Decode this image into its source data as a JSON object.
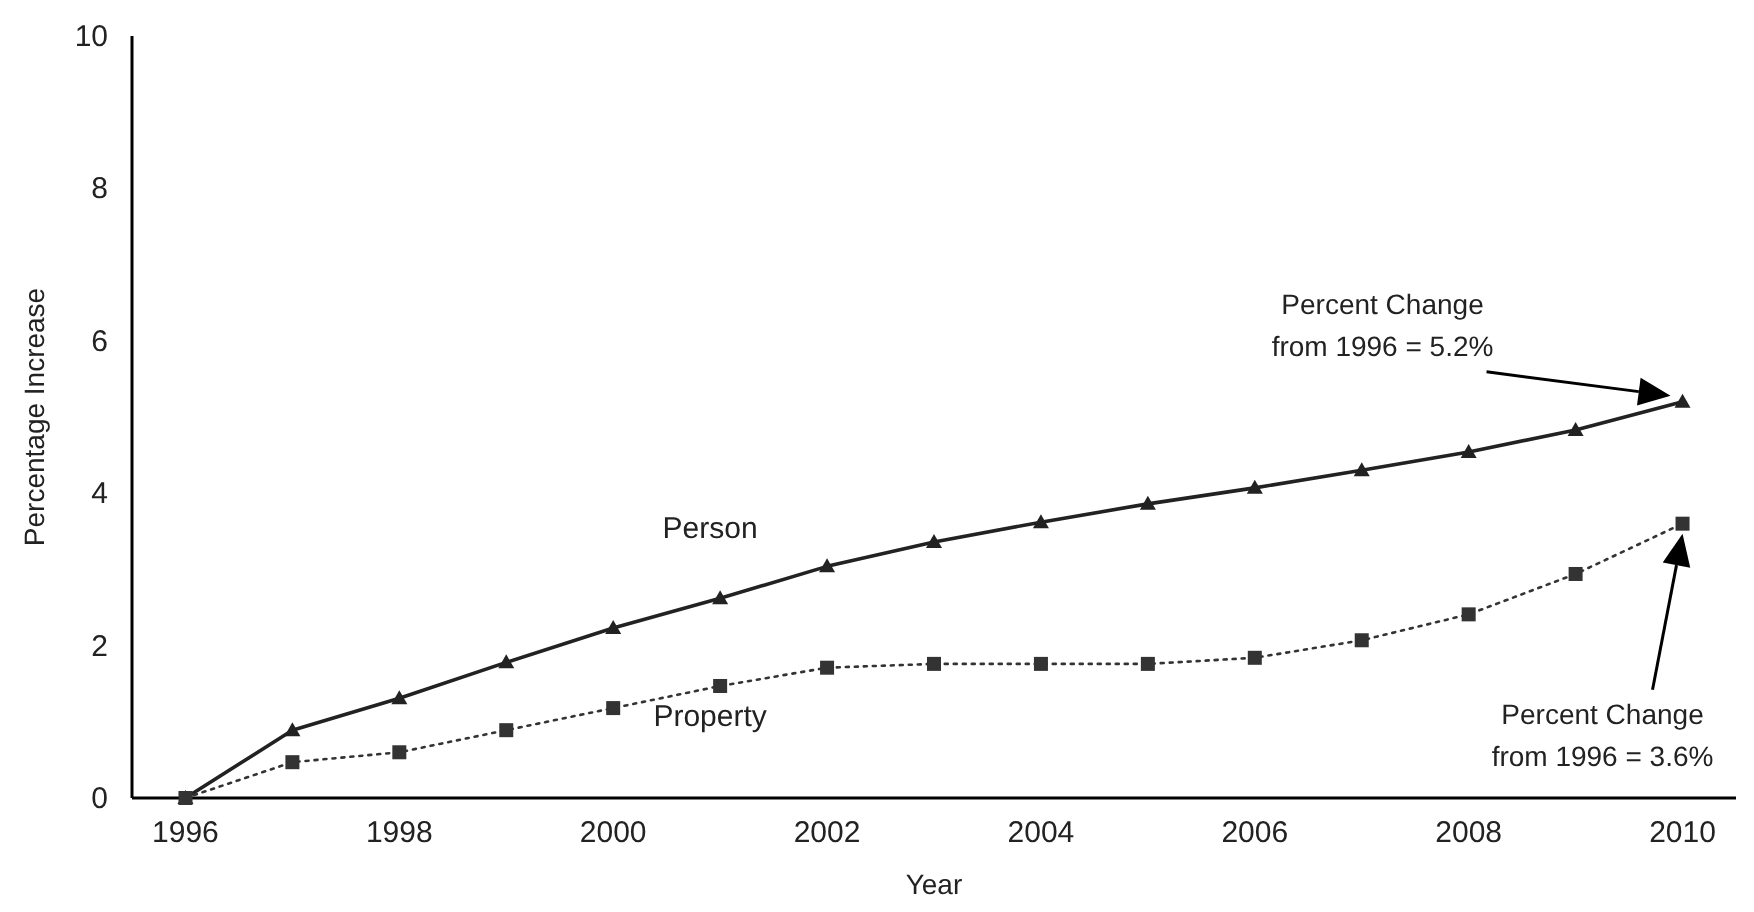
{
  "chart_data": {
    "type": "line",
    "xlabel": "Year",
    "ylabel": "Percentage Increase",
    "x": [
      1996,
      1997,
      1998,
      1999,
      2000,
      2001,
      2002,
      2003,
      2004,
      2005,
      2006,
      2007,
      2008,
      2009,
      2010
    ],
    "series": [
      {
        "name": "Person",
        "color": "#222222",
        "marker": "triangle",
        "line_style": "solid",
        "values": [
          0,
          0.89,
          1.31,
          1.78,
          2.23,
          2.62,
          3.04,
          3.36,
          3.62,
          3.86,
          4.07,
          4.3,
          4.54,
          4.83,
          5.2
        ]
      },
      {
        "name": "Property",
        "color": "#333333",
        "marker": "square",
        "line_style": "dotted",
        "values": [
          0,
          0.47,
          0.6,
          0.89,
          1.18,
          1.47,
          1.71,
          1.76,
          1.76,
          1.76,
          1.84,
          2.07,
          2.41,
          2.94,
          3.6
        ]
      }
    ],
    "xlim": [
      1995.5,
      2010.5
    ],
    "xticks": [
      1996,
      1998,
      2000,
      2002,
      2004,
      2006,
      2008,
      2010
    ],
    "ylim": [
      0,
      10
    ],
    "yticks": [
      0,
      2,
      4,
      6,
      8,
      10
    ],
    "grid": false,
    "annotations": [
      "Percent Change\nfrom 1996 = 5.2%",
      "Percent Change\nfrom 1996 = 3.6%"
    ]
  }
}
